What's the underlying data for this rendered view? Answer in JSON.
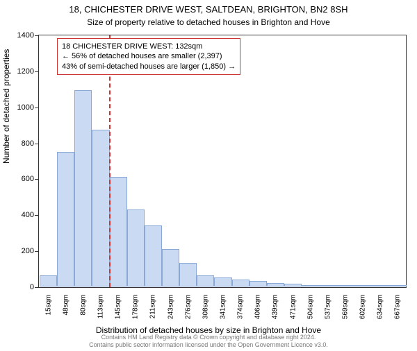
{
  "title": "18, CHICHESTER DRIVE WEST, SALTDEAN, BRIGHTON, BN2 8SH",
  "subtitle": "Size of property relative to detached houses in Brighton and Hove",
  "chart": {
    "type": "histogram",
    "background_color": "#ffffff",
    "border_color": "#333333",
    "bar_fill": "#c9daf2",
    "bar_stroke": "#8aa8d6",
    "marker_color": "#cc3333",
    "marker_x": 132,
    "ylim": [
      0,
      1400
    ],
    "ytick_step": 200,
    "yticks": [
      0,
      200,
      400,
      600,
      800,
      1000,
      1200,
      1400
    ],
    "xlabels": [
      "15sqm",
      "48sqm",
      "80sqm",
      "113sqm",
      "145sqm",
      "178sqm",
      "211sqm",
      "243sqm",
      "276sqm",
      "308sqm",
      "341sqm",
      "374sqm",
      "406sqm",
      "439sqm",
      "471sqm",
      "504sqm",
      "537sqm",
      "569sqm",
      "602sqm",
      "634sqm",
      "667sqm"
    ],
    "xrange": [
      0,
      693
    ],
    "bin_width": 33,
    "values": [
      60,
      750,
      1090,
      870,
      610,
      430,
      340,
      210,
      130,
      60,
      50,
      40,
      30,
      20,
      15,
      8,
      6,
      5,
      4,
      3,
      2
    ],
    "ylabel": "Number of detached properties",
    "xlabel": "Distribution of detached houses by size in Brighton and Hove",
    "label_fontsize": 12,
    "tick_fontsize": 11
  },
  "info_box": {
    "line1": "18 CHICHESTER DRIVE WEST: 132sqm",
    "line2": "← 56% of detached houses are smaller (2,397)",
    "line3": "43% of semi-detached houses are larger (1,850) →",
    "border_color": "#cc3333"
  },
  "credits": {
    "line1": "Contains HM Land Registry data © Crown copyright and database right 2024.",
    "line2": "Contains public sector information licensed under the Open Government Licence v3.0."
  }
}
